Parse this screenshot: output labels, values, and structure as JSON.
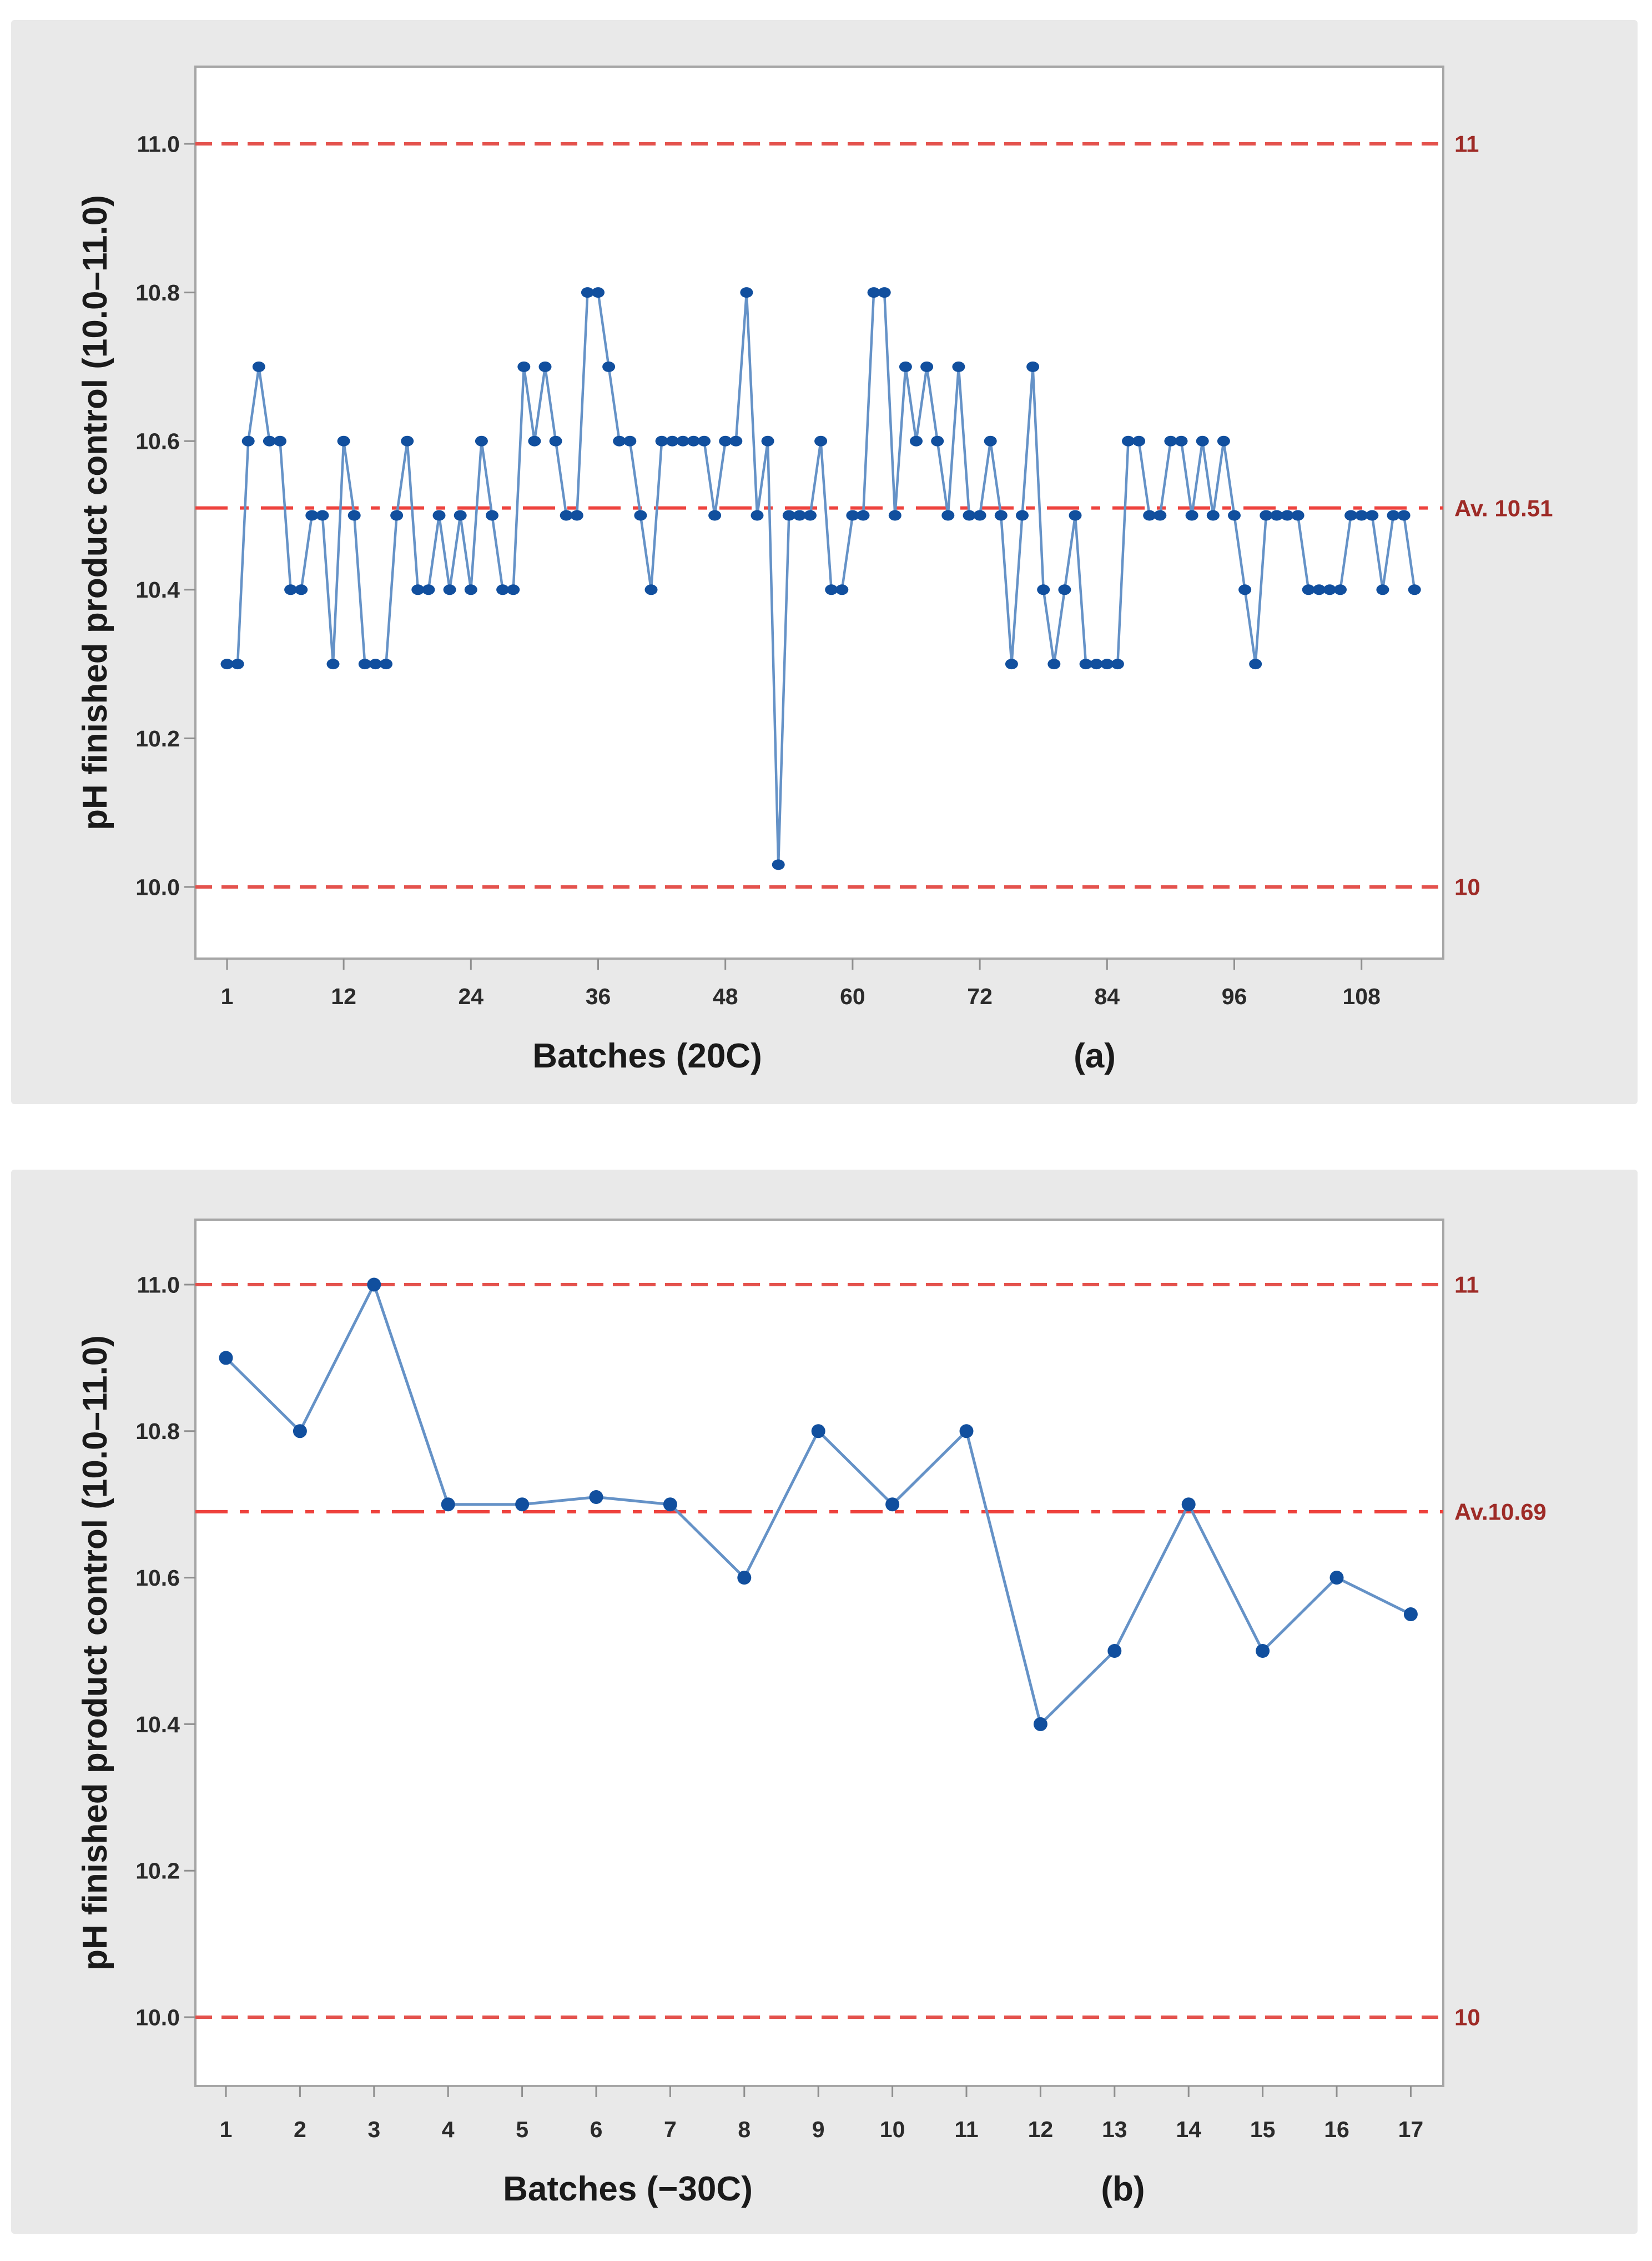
{
  "colors": {
    "page_bg": "#ffffff",
    "panel_bg": "#e9e9e9",
    "plot_bg": "#ffffff",
    "plot_border": "#a6a6a6",
    "tick_mark": "#8f8f8f",
    "tick_text": "#2b2b2b",
    "title_text": "#1a1a1a",
    "series_line": "#6592c7",
    "marker_fill": "#114f9e",
    "limit_line": "#e4524d",
    "average_line": "#ee423d",
    "annotation_text": "#9e2b27"
  },
  "chart_data": [
    {
      "type": "line",
      "panel": "a",
      "xlabel": "Batches (20C)",
      "panel_label": "(a)",
      "ylabel": "pH finished product control (10.0–11.0)",
      "x_start": 1,
      "x_step": 1,
      "x_ticks": [
        1,
        12,
        24,
        36,
        48,
        60,
        72,
        84,
        96,
        108
      ],
      "y_ticks": [
        "10.0",
        "10.2",
        "10.4",
        "10.6",
        "10.8",
        "11.0"
      ],
      "ylim": [
        9.9,
        11.11
      ],
      "grid": false,
      "legend": false,
      "upper_limit": {
        "value": 11,
        "label": "11"
      },
      "lower_limit": {
        "value": 10,
        "label": "10"
      },
      "average": {
        "value": 10.51,
        "label": "Av. 10.51"
      },
      "values": [
        10.3,
        10.3,
        10.6,
        10.7,
        10.6,
        10.6,
        10.4,
        10.4,
        10.5,
        10.5,
        10.3,
        10.6,
        10.5,
        10.3,
        10.3,
        10.3,
        10.5,
        10.6,
        10.4,
        10.4,
        10.5,
        10.4,
        10.5,
        10.4,
        10.6,
        10.5,
        10.4,
        10.4,
        10.7,
        10.6,
        10.7,
        10.6,
        10.5,
        10.5,
        10.8,
        10.8,
        10.7,
        10.6,
        10.6,
        10.5,
        10.4,
        10.6,
        10.6,
        10.6,
        10.6,
        10.6,
        10.5,
        10.6,
        10.6,
        10.8,
        10.5,
        10.6,
        10.03,
        10.5,
        10.5,
        10.5,
        10.6,
        10.4,
        10.4,
        10.5,
        10.5,
        10.8,
        10.8,
        10.5,
        10.7,
        10.6,
        10.7,
        10.6,
        10.5,
        10.7,
        10.5,
        10.5,
        10.6,
        10.5,
        10.3,
        10.5,
        10.7,
        10.4,
        10.3,
        10.4,
        10.5,
        10.3,
        10.3,
        10.3,
        10.3,
        10.6,
        10.6,
        10.5,
        10.5,
        10.6,
        10.6,
        10.5,
        10.6,
        10.5,
        10.6,
        10.5,
        10.4,
        10.3,
        10.5,
        10.5,
        10.5,
        10.5,
        10.4,
        10.4,
        10.4,
        10.4,
        10.5,
        10.5,
        10.5,
        10.4,
        10.5,
        10.5,
        10.4
      ]
    },
    {
      "type": "line",
      "panel": "b",
      "xlabel": "Batches (−30C)",
      "panel_label": "(b)",
      "ylabel": "pH finished product control (10.0–11.0)",
      "x_start": 1,
      "x_step": 1,
      "x_ticks": [
        1,
        2,
        3,
        4,
        5,
        6,
        7,
        8,
        9,
        10,
        11,
        12,
        13,
        14,
        15,
        16,
        17
      ],
      "y_ticks": [
        "10.0",
        "10.2",
        "10.4",
        "10.6",
        "10.8",
        "11.0"
      ],
      "ylim": [
        9.91,
        11.09
      ],
      "grid": false,
      "legend": false,
      "upper_limit": {
        "value": 11,
        "label": "11"
      },
      "lower_limit": {
        "value": 10,
        "label": "10"
      },
      "average": {
        "value": 10.69,
        "label": "Av.10.69"
      },
      "values": [
        10.9,
        10.8,
        11.0,
        10.7,
        10.7,
        10.71,
        10.7,
        10.6,
        10.8,
        10.7,
        10.8,
        10.4,
        10.5,
        10.7,
        10.5,
        10.6,
        10.55
      ]
    }
  ]
}
